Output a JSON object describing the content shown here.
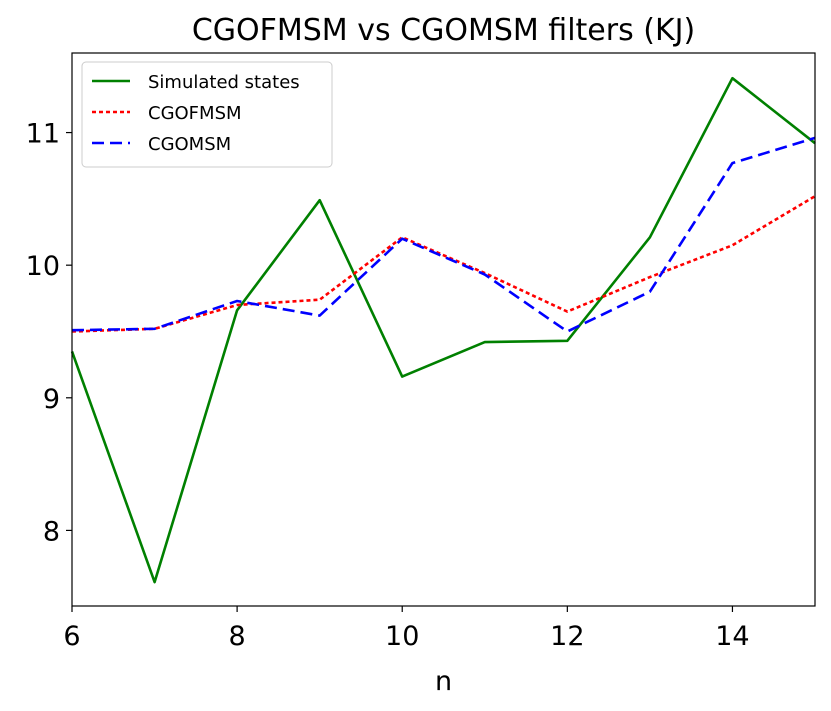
{
  "chart_data": {
    "type": "line",
    "title": "CGOFMSM vs CGOMSM filters (KJ)",
    "xlabel": "n",
    "ylabel": "",
    "xlim": [
      6,
      15
    ],
    "ylim": [
      7.43,
      11.6
    ],
    "xticks": [
      6,
      8,
      10,
      12,
      14
    ],
    "yticks": [
      8,
      9,
      10,
      11
    ],
    "x": [
      6,
      7,
      8,
      9,
      10,
      11,
      12,
      13,
      14,
      15
    ],
    "series": [
      {
        "name": "Simulated states",
        "color": "#008000",
        "dash": "solid",
        "values": [
          9.35,
          7.61,
          9.66,
          10.49,
          9.16,
          9.42,
          9.43,
          10.21,
          11.41,
          10.92
        ]
      },
      {
        "name": "CGOFMSM",
        "color": "#ff0000",
        "dash": "dotted",
        "values": [
          9.5,
          9.52,
          9.7,
          9.74,
          10.21,
          9.94,
          9.65,
          9.91,
          10.15,
          10.52
        ]
      },
      {
        "name": "CGOMSM",
        "color": "#0000ff",
        "dash": "dashed",
        "values": [
          9.51,
          9.52,
          9.73,
          9.62,
          10.2,
          9.93,
          9.5,
          9.8,
          10.77,
          10.96
        ]
      }
    ],
    "legend_position": "top-left",
    "grid": false
  }
}
